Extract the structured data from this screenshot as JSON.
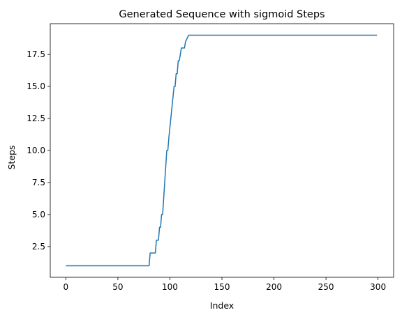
{
  "chart_data": {
    "type": "line",
    "title": "Generated Sequence with sigmoid Steps",
    "xlabel": "Index",
    "ylabel": "Steps",
    "xlim": [
      -15,
      315
    ],
    "ylim": [
      0.1,
      19.9
    ],
    "xticks": [
      0,
      50,
      100,
      150,
      200,
      250,
      300
    ],
    "xtick_labels": [
      "0",
      "50",
      "100",
      "150",
      "200",
      "250",
      "300"
    ],
    "yticks": [
      2.5,
      5.0,
      7.5,
      10.0,
      12.5,
      15.0,
      17.5
    ],
    "ytick_labels": [
      "2.5",
      "5.0",
      "7.5",
      "10.0",
      "12.5",
      "15.0",
      "17.5"
    ],
    "grid": false,
    "series": [
      {
        "color": "#1f77b4",
        "x": [
          0,
          80,
          81,
          86,
          87,
          89,
          90,
          91,
          92,
          93,
          97,
          98,
          99,
          104,
          105,
          106,
          107,
          108,
          109,
          110,
          111,
          114,
          115,
          118,
          299
        ],
        "y": [
          1,
          1,
          2,
          2,
          3,
          3,
          4,
          4,
          5,
          5,
          10,
          10,
          11,
          15,
          15,
          16,
          16,
          17,
          17,
          17.5,
          18,
          18,
          18.5,
          19,
          19
        ]
      }
    ]
  }
}
